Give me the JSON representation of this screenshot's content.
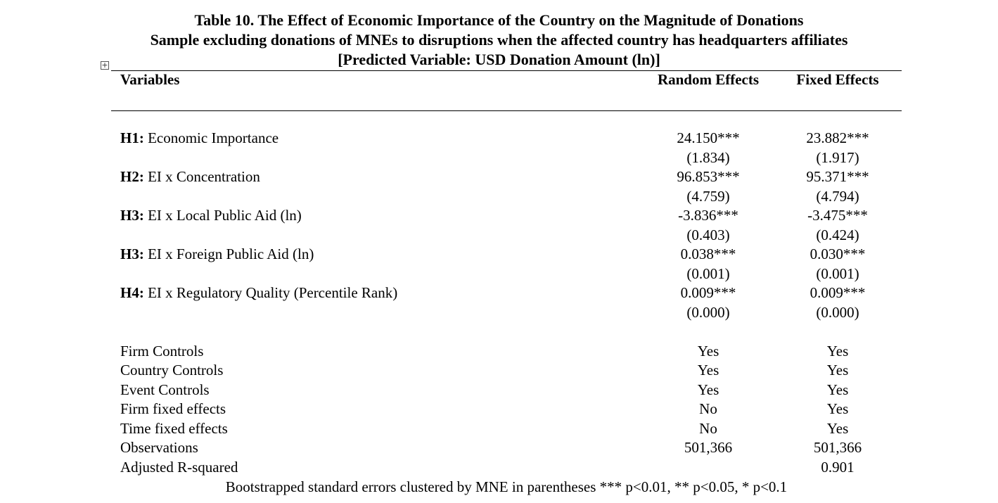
{
  "title": {
    "line1": "Table 10. The Effect of Economic Importance of the Country on the Magnitude of Donations",
    "line2": "Sample excluding donations of MNEs to disruptions when the affected country has headquarters affiliates",
    "line3": "[Predicted Variable: USD Donation Amount (ln)]"
  },
  "table_handle_glyph": "+",
  "header": {
    "variables": "Variables",
    "random_effects": "Random Effects",
    "fixed_effects": "Fixed Effects"
  },
  "hypotheses": [
    {
      "prefix": "H1:",
      "label": " Economic Importance",
      "re_coef": "24.150***",
      "re_se": "(1.834)",
      "fe_coef": "23.882***",
      "fe_se": "(1.917)"
    },
    {
      "prefix": "H2:",
      "label": " EI x Concentration",
      "re_coef": "96.853***",
      "re_se": "(4.759)",
      "fe_coef": "95.371***",
      "fe_se": "(4.794)"
    },
    {
      "prefix": "H3:",
      "label": " EI x Local Public Aid (ln)",
      "re_coef": "-3.836***",
      "re_se": "(0.403)",
      "fe_coef": "-3.475***",
      "fe_se": "(0.424)"
    },
    {
      "prefix": "H3:",
      "label": " EI x Foreign Public Aid (ln)",
      "re_coef": "0.038***",
      "re_se": "(0.001)",
      "fe_coef": "0.030***",
      "fe_se": "(0.001)"
    },
    {
      "prefix": "H4:",
      "label": " EI x Regulatory Quality (Percentile Rank)",
      "re_coef": "0.009***",
      "re_se": "(0.000)",
      "fe_coef": "0.009***",
      "fe_se": "(0.000)"
    }
  ],
  "controls": [
    {
      "label": "Firm Controls",
      "re": "Yes",
      "fe": "Yes"
    },
    {
      "label": "Country Controls",
      "re": "Yes",
      "fe": "Yes"
    },
    {
      "label": "Event Controls",
      "re": "Yes",
      "fe": "Yes"
    },
    {
      "label": "Firm fixed effects",
      "re": "No",
      "fe": "Yes"
    },
    {
      "label": "Time fixed effects",
      "re": "No",
      "fe": "Yes"
    },
    {
      "label": "Observations",
      "re": "501,366",
      "fe": "501,366"
    },
    {
      "label": "Adjusted R-squared",
      "re": "",
      "fe": "0.901"
    }
  ],
  "footnote": "Bootstrapped standard errors clustered by MNE in parentheses *** p<0.01, ** p<0.05, * p<0.1"
}
